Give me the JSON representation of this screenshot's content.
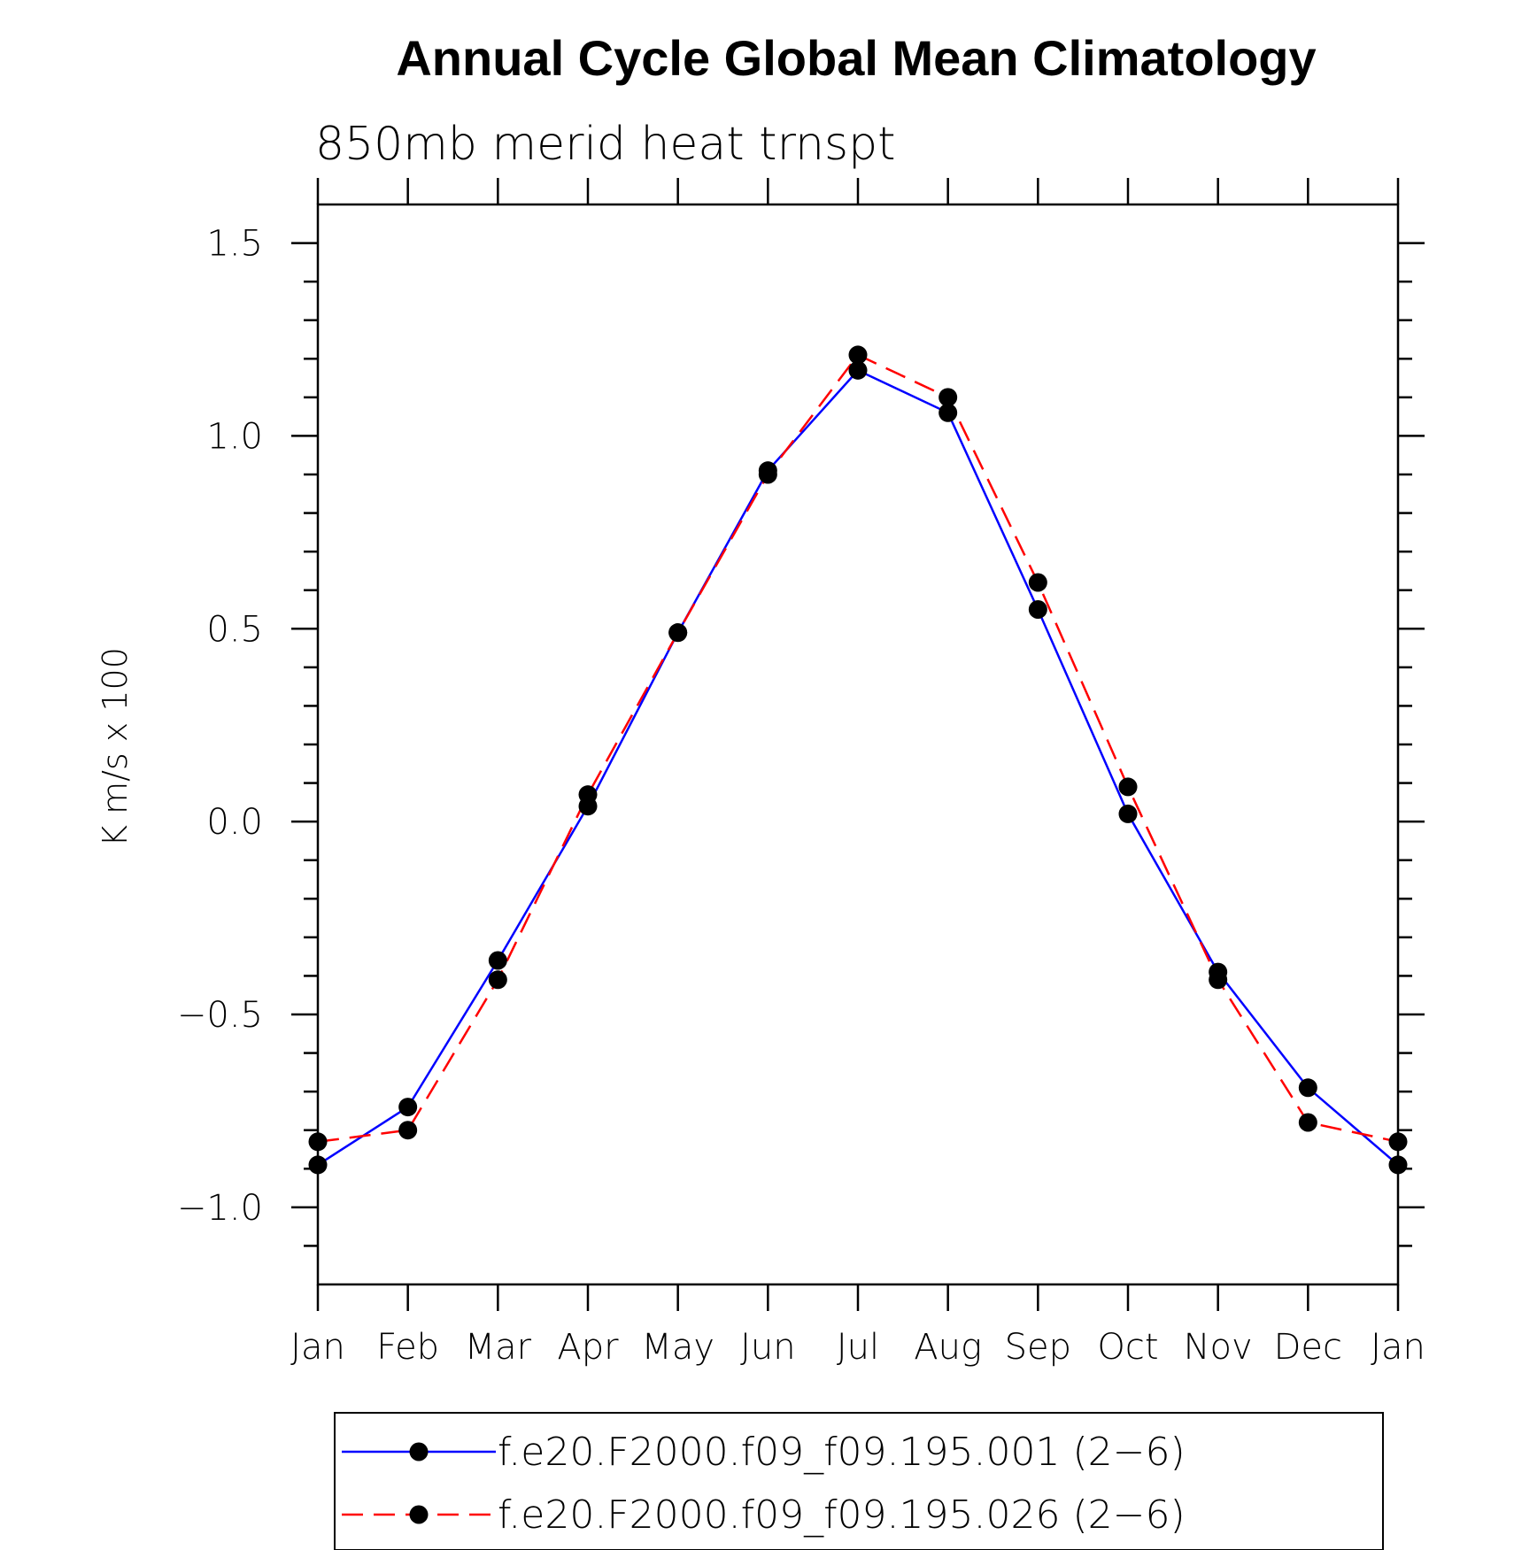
{
  "chart_data": {
    "type": "line",
    "title": "Annual Cycle Global Mean Climatology",
    "subtitle": "850mb merid heat trnspt",
    "xlabel": "",
    "ylabel": "K m/s x 100",
    "categories": [
      "Jan",
      "Feb",
      "Mar",
      "Apr",
      "May",
      "Jun",
      "Jul",
      "Aug",
      "Sep",
      "Oct",
      "Nov",
      "Dec",
      "Jan"
    ],
    "ylim": [
      -1.2,
      1.6
    ],
    "yticks": [
      -1.0,
      -0.5,
      0.0,
      0.5,
      1.0,
      1.5
    ],
    "ytick_labels": [
      "−1.0",
      "−0.5",
      "0.0",
      "0.5",
      "1.0",
      "1.5"
    ],
    "yminor_step": 0.1,
    "grid": false,
    "legend_position": "bottom",
    "series": [
      {
        "name": "f.e20.F2000.f09_f09.195.001 (2−6)",
        "color": "#0000ff",
        "line_style": "solid",
        "marker": "filled-circle",
        "values": [
          -0.89,
          -0.74,
          -0.36,
          0.04,
          0.49,
          0.91,
          1.17,
          1.06,
          0.55,
          0.02,
          -0.39,
          -0.69,
          -0.89
        ]
      },
      {
        "name": "f.e20.F2000.f09_f09.195.026 (2−6)",
        "color": "#ff0000",
        "line_style": "dashed",
        "marker": "filled-circle",
        "values": [
          -0.83,
          -0.8,
          -0.41,
          0.07,
          0.49,
          0.9,
          1.21,
          1.1,
          0.62,
          0.09,
          -0.41,
          -0.78,
          -0.83
        ]
      }
    ]
  }
}
